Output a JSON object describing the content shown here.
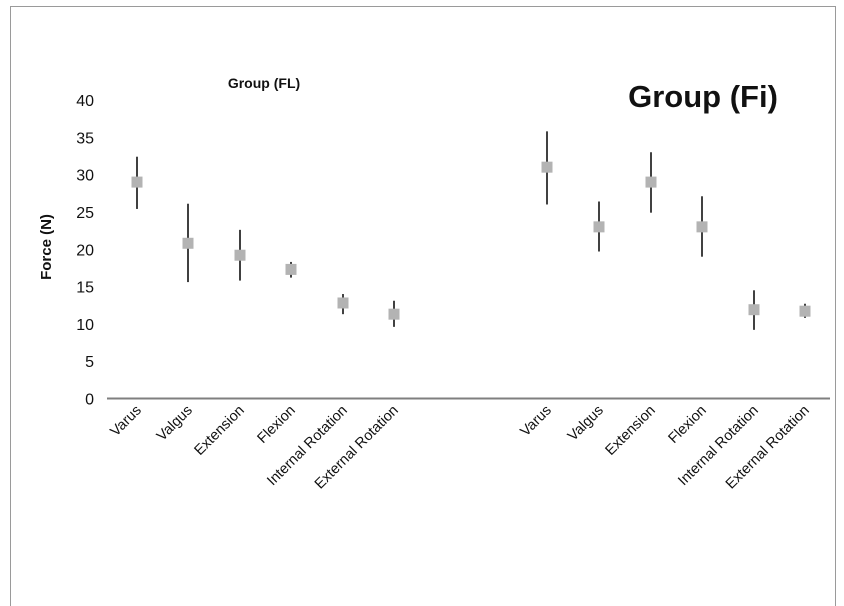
{
  "chart_data": {
    "type": "scatter",
    "subtype": "error-bar",
    "ylabel": "Force (N)",
    "ylim": [
      0,
      40
    ],
    "yticks": [
      0,
      5,
      10,
      15,
      20,
      25,
      30,
      35,
      40
    ],
    "grid": false,
    "marker_color": "#b3b3b3",
    "bar_color": "#111111",
    "axis_color": "#7f7f7f",
    "groups": [
      {
        "title": "Group (FL)",
        "categories": [
          "Varus",
          "Valgus",
          "Extension",
          "Flexion",
          "Internal Rotation",
          "External Rotation"
        ],
        "values": [
          29,
          20.8,
          19.2,
          17.3,
          12.8,
          11.3
        ],
        "err_low": [
          25.4,
          15.6,
          15.8,
          16.2,
          11.3,
          9.6
        ],
        "err_high": [
          32.4,
          26.1,
          22.6,
          18.3,
          14.0,
          13.1
        ]
      },
      {
        "title": "Group (Fi)",
        "categories": [
          "Varus",
          "Valgus",
          "Extension",
          "Flexion",
          "Internal Rotation",
          "External Rotation"
        ],
        "values": [
          31,
          23,
          29,
          23,
          11.9,
          11.7
        ],
        "err_low": [
          26,
          19.7,
          24.9,
          19,
          9.2,
          10.8
        ],
        "err_high": [
          35.8,
          26.4,
          33,
          27.1,
          14.5,
          12.7
        ]
      }
    ]
  }
}
